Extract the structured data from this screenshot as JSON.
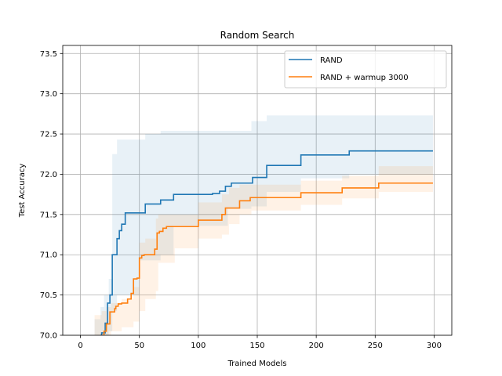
{
  "chart_data": {
    "type": "line",
    "title": "Random Search",
    "xlabel": "Trained Models",
    "ylabel": "Test Accuracy",
    "xlim": [
      -15,
      315
    ],
    "ylim": [
      70.0,
      73.6
    ],
    "xticks": [
      0,
      50,
      100,
      150,
      200,
      250,
      300
    ],
    "yticks": [
      70.0,
      70.5,
      71.0,
      71.5,
      72.0,
      72.5,
      73.0,
      73.5
    ],
    "grid": true,
    "legend_position": "top-right",
    "series": [
      {
        "name": "RAND",
        "color": "#1f77b4",
        "steps": [
          [
            17,
            70.0
          ],
          [
            18,
            70.03
          ],
          [
            21,
            70.15
          ],
          [
            23,
            70.4
          ],
          [
            25,
            70.5
          ],
          [
            27,
            71.0
          ],
          [
            31,
            71.2
          ],
          [
            33,
            71.3
          ],
          [
            35,
            71.38
          ],
          [
            38,
            71.52
          ],
          [
            55,
            71.63
          ],
          [
            68,
            71.68
          ],
          [
            79,
            71.75
          ],
          [
            112,
            71.76
          ],
          [
            118,
            71.79
          ],
          [
            123,
            71.85
          ],
          [
            128,
            71.89
          ],
          [
            146,
            71.96
          ],
          [
            158,
            72.11
          ],
          [
            187,
            72.24
          ],
          [
            228,
            72.29
          ],
          [
            299,
            72.29
          ]
        ],
        "band_steps": [
          [
            12,
            69.85,
            70.2
          ],
          [
            17,
            69.9,
            70.35
          ],
          [
            20,
            69.95,
            70.5
          ],
          [
            24,
            70.05,
            70.7
          ],
          [
            27,
            70.3,
            72.25
          ],
          [
            31,
            70.5,
            72.43
          ],
          [
            50,
            70.93,
            72.43
          ],
          [
            55,
            70.93,
            72.5
          ],
          [
            68,
            71.0,
            72.54
          ],
          [
            79,
            71.36,
            72.54
          ],
          [
            120,
            71.36,
            72.54
          ],
          [
            125,
            71.57,
            72.54
          ],
          [
            145,
            71.6,
            72.66
          ],
          [
            158,
            71.78,
            72.73
          ],
          [
            187,
            71.95,
            72.73
          ],
          [
            228,
            72.0,
            72.73
          ],
          [
            299,
            72.0,
            72.73
          ]
        ]
      },
      {
        "name": "RAND + warmup 3000",
        "color": "#ff7f0e",
        "steps": [
          [
            18,
            70.0
          ],
          [
            20,
            70.05
          ],
          [
            22,
            70.14
          ],
          [
            25,
            70.29
          ],
          [
            29,
            70.33
          ],
          [
            30,
            70.36
          ],
          [
            32,
            70.39
          ],
          [
            35,
            70.4
          ],
          [
            40,
            70.45
          ],
          [
            43,
            70.52
          ],
          [
            45,
            70.7
          ],
          [
            48,
            70.71
          ],
          [
            50,
            70.96
          ],
          [
            52,
            70.99
          ],
          [
            54,
            71.0
          ],
          [
            63,
            71.07
          ],
          [
            65,
            71.27
          ],
          [
            67,
            71.29
          ],
          [
            70,
            71.33
          ],
          [
            73,
            71.35
          ],
          [
            100,
            71.43
          ],
          [
            120,
            71.5
          ],
          [
            123,
            71.58
          ],
          [
            135,
            71.67
          ],
          [
            144,
            71.71
          ],
          [
            187,
            71.77
          ],
          [
            222,
            71.83
          ],
          [
            253,
            71.89
          ],
          [
            299,
            71.89
          ]
        ],
        "band_steps": [
          [
            12,
            69.85,
            70.25
          ],
          [
            18,
            69.9,
            70.3
          ],
          [
            22,
            69.98,
            70.35
          ],
          [
            26,
            70.05,
            70.4
          ],
          [
            35,
            70.1,
            70.45
          ],
          [
            45,
            70.17,
            70.6
          ],
          [
            50,
            70.3,
            71.15
          ],
          [
            55,
            70.45,
            71.2
          ],
          [
            64,
            70.55,
            71.45
          ],
          [
            66,
            70.9,
            71.5
          ],
          [
            80,
            71.08,
            71.5
          ],
          [
            100,
            71.2,
            71.65
          ],
          [
            120,
            71.25,
            71.75
          ],
          [
            126,
            71.38,
            71.83
          ],
          [
            135,
            71.5,
            71.87
          ],
          [
            145,
            71.55,
            71.87
          ],
          [
            187,
            71.62,
            71.92
          ],
          [
            222,
            71.7,
            71.98
          ],
          [
            253,
            71.78,
            72.1
          ],
          [
            299,
            71.78,
            72.1
          ]
        ]
      }
    ]
  }
}
